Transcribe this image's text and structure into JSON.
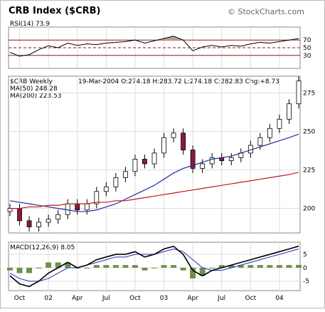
{
  "header": {
    "title": "CRB Index ($CRB)",
    "brand": "© StockCharts.com"
  },
  "panels": {
    "rsi": {
      "label": "RSI(14) 73.9",
      "levels": [
        "70",
        "50",
        "30"
      ]
    },
    "price": {
      "symbol_label": "$CRB Weekly",
      "ohlc_label": "19-Mar-2004  O:274.18  H:283.72  L:274.18  C:282.83  Chg:+8.73",
      "ma50_label": "MA(50) 248.28",
      "ma200_label": "MA(200) 223.53"
    },
    "macd": {
      "label": "MACD(12,26,9) 8.05"
    }
  },
  "colors": {
    "panel_border": "#888888",
    "rsi_line": "#000000",
    "rsi_fill": "#b9a889",
    "rsi_level_line": "#8b1a1a",
    "candle_up": "#ffffff",
    "candle_down": "#8b1a3a",
    "ma50": "#1f2f9f",
    "ma200": "#c01818",
    "macd_line": "#000000",
    "macd_signal": "#1f2fbf",
    "macd_hist": "#6f8f4f",
    "grid": "#dddddd"
  },
  "chart_data": [
    {
      "type": "line",
      "panel": "RSI(14)",
      "ylim": [
        0,
        100
      ],
      "levels": [
        70,
        50,
        30
      ],
      "x": [
        "2001-09",
        "2001-10",
        "2001-11",
        "2001-12",
        "2002-01",
        "2002-02",
        "2002-03",
        "2002-04",
        "2002-05",
        "2002-06",
        "2002-07",
        "2002-08",
        "2002-09",
        "2002-10",
        "2002-11",
        "2002-12",
        "2003-01",
        "2003-02",
        "2003-03",
        "2003-04",
        "2003-05",
        "2003-06",
        "2003-07",
        "2003-08",
        "2003-09",
        "2003-10",
        "2003-11",
        "2003-12",
        "2004-01",
        "2004-02",
        "2004-03"
      ],
      "series": [
        {
          "values": [
            38,
            28,
            32,
            45,
            55,
            50,
            62,
            56,
            60,
            58,
            62,
            64,
            66,
            70,
            62,
            68,
            74,
            80,
            70,
            42,
            52,
            56,
            52,
            56,
            54,
            60,
            64,
            62,
            66,
            70,
            73.9
          ]
        }
      ]
    },
    {
      "type": "candlestick",
      "panel": "$CRB Weekly",
      "ylim": [
        185,
        285
      ],
      "yticks": [
        200,
        225,
        250,
        275
      ],
      "x": [
        "2001-09",
        "2001-10",
        "2001-11",
        "2001-12",
        "2002-01",
        "2002-02",
        "2002-03",
        "2002-04",
        "2002-05",
        "2002-06",
        "2002-07",
        "2002-08",
        "2002-09",
        "2002-10",
        "2002-11",
        "2002-12",
        "2003-01",
        "2003-02",
        "2003-03",
        "2003-04",
        "2003-05",
        "2003-06",
        "2003-07",
        "2003-08",
        "2003-09",
        "2003-10",
        "2003-11",
        "2003-12",
        "2004-01",
        "2004-02",
        "2004-03"
      ],
      "series": [
        {
          "name": "close",
          "values": [
            200,
            192,
            188,
            191,
            193,
            196,
            203,
            199,
            203,
            211,
            214,
            220,
            224,
            232,
            229,
            236,
            246,
            249,
            238,
            226,
            229,
            233,
            231,
            233,
            236,
            241,
            246,
            252,
            258,
            268,
            282.83
          ]
        },
        {
          "name": "MA(50)",
          "values": [
            205,
            204,
            203,
            202,
            201,
            200,
            199,
            198,
            198,
            199,
            201,
            203,
            206,
            209,
            212,
            215,
            219,
            223,
            226,
            228,
            230,
            232,
            233,
            234,
            236,
            238,
            240,
            242,
            244,
            246,
            248.28
          ]
        },
        {
          "name": "MA(200)",
          "values": [
            200,
            200,
            201,
            201,
            202,
            202,
            203,
            203,
            203,
            204,
            204,
            205,
            205,
            206,
            207,
            208,
            209,
            210,
            211,
            212,
            213,
            214,
            215,
            216,
            217,
            218,
            219,
            220,
            221,
            222,
            223.53
          ]
        }
      ]
    },
    {
      "type": "line",
      "panel": "MACD(12,26,9)",
      "ylim": [
        -8,
        9
      ],
      "yticks": [
        5,
        0,
        -5
      ],
      "x": [
        "2001-09",
        "2001-10",
        "2001-11",
        "2001-12",
        "2002-01",
        "2002-02",
        "2002-03",
        "2002-04",
        "2002-05",
        "2002-06",
        "2002-07",
        "2002-08",
        "2002-09",
        "2002-10",
        "2002-11",
        "2002-12",
        "2003-01",
        "2003-02",
        "2003-03",
        "2003-04",
        "2003-05",
        "2003-06",
        "2003-07",
        "2003-08",
        "2003-09",
        "2003-10",
        "2003-11",
        "2003-12",
        "2004-01",
        "2004-02",
        "2004-03"
      ],
      "series": [
        {
          "name": "MACD",
          "values": [
            -3,
            -6,
            -7,
            -5,
            -2,
            0,
            2,
            0,
            1,
            3,
            4,
            5,
            5,
            6,
            4,
            5,
            7,
            8,
            5,
            -1,
            -3,
            -1,
            0,
            1,
            2,
            3,
            4,
            5,
            6,
            7,
            8.05
          ]
        },
        {
          "name": "Signal",
          "values": [
            -2,
            -4,
            -5,
            -5,
            -4,
            -2,
            0,
            0,
            1,
            2,
            3,
            4,
            4,
            5,
            5,
            5,
            6,
            7,
            6,
            3,
            0,
            -1,
            -1,
            0,
            1,
            2,
            3,
            4,
            5,
            6,
            7
          ]
        }
      ]
    }
  ],
  "x_axis": {
    "tick_labels": [
      "Oct",
      "02",
      "Apr",
      "Jul",
      "Oct",
      "03",
      "Apr",
      "Jul",
      "Oct",
      "04"
    ],
    "tick_months": [
      "2001-10",
      "2002-01",
      "2002-04",
      "2002-07",
      "2002-10",
      "2003-01",
      "2003-04",
      "2003-07",
      "2003-10",
      "2004-01"
    ]
  }
}
